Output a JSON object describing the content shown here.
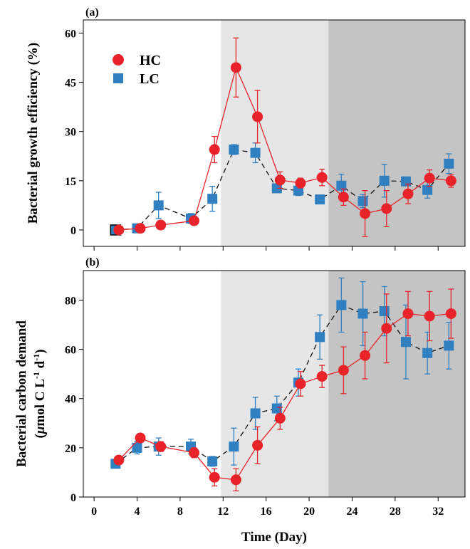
{
  "colors": {
    "hc": "#e8232a",
    "lc": "#2f7fc1",
    "lc_first_marker_fill": "#2f7fc1",
    "shade_light": "#e6e6e6",
    "shade_dark": "#c4c4c4"
  },
  "x_axis": {
    "label": "Time (Day)",
    "ticks": [
      0,
      4,
      8,
      12,
      16,
      20,
      24,
      28,
      32
    ],
    "lim": [
      -1,
      34.5
    ]
  },
  "shading": [
    {
      "from": 11.8,
      "to": 21.8,
      "tone": "light"
    },
    {
      "from": 21.8,
      "to": 34.5,
      "tone": "dark"
    }
  ],
  "chart_data": [
    {
      "type": "line",
      "panel": "(a)",
      "ylabel": "Bacterial growth efficiency (%)",
      "ylim": [
        -5,
        64
      ],
      "yticks": [
        0,
        15,
        30,
        45,
        60
      ],
      "legend": {
        "position": "top-left",
        "entries": [
          "HC",
          "LC"
        ]
      },
      "series": [
        {
          "name": "HC",
          "line_style": "solid",
          "marker": "circle",
          "x": [
            2.3,
            4.3,
            6.2,
            9.3,
            11.2,
            13.2,
            15.2,
            17.3,
            19.2,
            21.2,
            23.2,
            25.2,
            27.2,
            29.2,
            31.2,
            33.2
          ],
          "y": [
            0.0,
            0.5,
            1.5,
            2.8,
            24.5,
            49.5,
            34.5,
            15.2,
            14.3,
            16.0,
            10.0,
            5.0,
            6.5,
            11.0,
            15.8,
            15.0
          ],
          "err": [
            0.3,
            0.5,
            0.8,
            1.2,
            4.0,
            9.0,
            8.0,
            2.5,
            1.5,
            2.5,
            2.5,
            7.0,
            5.5,
            3.0,
            2.5,
            2.0
          ]
        },
        {
          "name": "LC",
          "line_style": "dashed",
          "marker": "square",
          "x": [
            2.0,
            4.0,
            6.0,
            9.0,
            11.0,
            13.0,
            15.0,
            17.0,
            19.0,
            21.0,
            23.0,
            25.0,
            27.0,
            29.0,
            31.0,
            33.0
          ],
          "y": [
            0.0,
            0.5,
            7.5,
            3.5,
            9.5,
            24.5,
            23.5,
            12.7,
            12.0,
            9.3,
            13.5,
            8.8,
            15.0,
            14.8,
            12.2,
            20.2
          ],
          "err": [
            0.3,
            0.5,
            4.0,
            1.5,
            3.8,
            1.5,
            3.0,
            1.0,
            1.5,
            1.0,
            3.5,
            2.0,
            5.0,
            1.0,
            2.5,
            3.0
          ]
        }
      ]
    },
    {
      "type": "line",
      "panel": "(b)",
      "ylabel_line1": "Bacterial carbon demand",
      "ylabel_line2_prefix": "(",
      "ylabel_mu": "μ",
      "ylabel_line2_rest": "mol C L",
      "ylabel_sup1": "-1",
      "ylabel_mid": " d",
      "ylabel_sup2": "-1",
      "ylabel_end": ")",
      "ylim": [
        0,
        92
      ],
      "yticks": [
        0,
        20,
        40,
        60,
        80
      ],
      "series": [
        {
          "name": "HC",
          "line_style": "solid",
          "marker": "circle",
          "x": [
            2.3,
            4.3,
            6.2,
            9.3,
            11.2,
            13.2,
            15.2,
            17.3,
            19.2,
            21.2,
            23.2,
            25.2,
            27.2,
            29.2,
            31.2,
            33.2
          ],
          "y": [
            15.0,
            24.0,
            20.5,
            18.0,
            8.0,
            7.0,
            21.0,
            32.0,
            46.0,
            49.0,
            51.5,
            57.5,
            68.5,
            74.5,
            73.5,
            74.5
          ],
          "err": [
            1.0,
            1.5,
            2.0,
            2.0,
            3.5,
            4.5,
            7.5,
            4.5,
            5.0,
            4.5,
            9.5,
            9.5,
            14.0,
            9.0,
            10.0,
            10.0
          ]
        },
        {
          "name": "LC",
          "line_style": "dashed",
          "marker": "square",
          "x": [
            2.0,
            4.0,
            6.0,
            9.0,
            11.0,
            13.0,
            15.0,
            17.0,
            19.0,
            21.0,
            23.0,
            25.0,
            27.0,
            29.0,
            31.0,
            33.0
          ],
          "y": [
            13.5,
            20.0,
            20.5,
            20.5,
            14.5,
            20.5,
            34.0,
            36.0,
            46.5,
            65.0,
            78.0,
            74.5,
            75.5,
            63.0,
            58.5,
            61.5
          ],
          "err": [
            1.0,
            2.5,
            3.5,
            3.0,
            2.0,
            7.5,
            6.5,
            5.0,
            5.5,
            9.0,
            11.0,
            13.0,
            10.0,
            15.0,
            8.5,
            9.5
          ]
        }
      ]
    }
  ]
}
